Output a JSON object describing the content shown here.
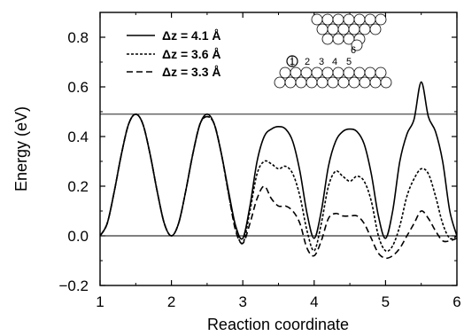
{
  "chart_data": {
    "type": "line",
    "title": "",
    "xlabel": "Reaction coordinate",
    "ylabel": "Energy  (eV)",
    "xlim": [
      1,
      6
    ],
    "ylim": [
      -0.2,
      0.9
    ],
    "x_ticks": [
      "1",
      "2",
      "3",
      "4",
      "5",
      "6"
    ],
    "y_ticks": [
      "−0.2",
      "0.0",
      "0.2",
      "0.4",
      "0.6",
      "0.8"
    ],
    "y_tick_values": [
      -0.2,
      0.0,
      0.2,
      0.4,
      0.6,
      0.8
    ],
    "reference_lines": [
      0.0,
      0.49
    ],
    "grid": false,
    "legend_position": "top-left",
    "series": [
      {
        "name": "Δz = 4.1 Å",
        "style": "solid",
        "x": [
          1.0,
          1.1,
          1.2,
          1.3,
          1.4,
          1.5,
          1.6,
          1.7,
          1.8,
          1.9,
          2.0,
          2.1,
          2.2,
          2.3,
          2.4,
          2.5,
          2.6,
          2.7,
          2.8,
          2.9,
          3.0,
          3.1,
          3.2,
          3.3,
          3.4,
          3.5,
          3.6,
          3.7,
          3.8,
          3.9,
          4.0,
          4.1,
          4.2,
          4.3,
          4.4,
          4.5,
          4.6,
          4.7,
          4.8,
          4.9,
          5.0,
          5.1,
          5.2,
          5.3,
          5.4,
          5.5,
          5.6,
          5.7,
          5.8,
          5.9,
          6.0
        ],
        "y": [
          0.0,
          0.05,
          0.18,
          0.33,
          0.45,
          0.49,
          0.45,
          0.33,
          0.18,
          0.05,
          0.0,
          0.05,
          0.18,
          0.33,
          0.45,
          0.49,
          0.45,
          0.33,
          0.18,
          0.04,
          -0.01,
          0.12,
          0.3,
          0.4,
          0.43,
          0.44,
          0.43,
          0.38,
          0.26,
          0.09,
          -0.01,
          0.1,
          0.28,
          0.38,
          0.42,
          0.43,
          0.42,
          0.37,
          0.25,
          0.08,
          -0.01,
          0.1,
          0.3,
          0.41,
          0.47,
          0.62,
          0.48,
          0.42,
          0.3,
          0.1,
          0.0
        ]
      },
      {
        "name": "Δz = 3.6 Å",
        "style": "dotted",
        "x": [
          1.0,
          1.1,
          1.2,
          1.3,
          1.4,
          1.5,
          1.6,
          1.7,
          1.8,
          1.9,
          2.0,
          2.1,
          2.2,
          2.3,
          2.4,
          2.5,
          2.6,
          2.7,
          2.8,
          2.9,
          3.0,
          3.1,
          3.2,
          3.3,
          3.4,
          3.5,
          3.6,
          3.7,
          3.8,
          3.9,
          4.0,
          4.1,
          4.2,
          4.3,
          4.4,
          4.5,
          4.6,
          4.7,
          4.8,
          4.9,
          5.0,
          5.1,
          5.2,
          5.3,
          5.4,
          5.5,
          5.6,
          5.7,
          5.8,
          5.9,
          6.0
        ],
        "y": [
          0.0,
          0.05,
          0.18,
          0.33,
          0.45,
          0.49,
          0.45,
          0.33,
          0.18,
          0.05,
          0.0,
          0.05,
          0.18,
          0.33,
          0.45,
          0.48,
          0.45,
          0.33,
          0.17,
          0.03,
          -0.03,
          0.1,
          0.25,
          0.3,
          0.29,
          0.27,
          0.28,
          0.25,
          0.16,
          0.02,
          -0.06,
          0.05,
          0.2,
          0.26,
          0.24,
          0.22,
          0.24,
          0.22,
          0.14,
          0.0,
          -0.06,
          -0.04,
          0.04,
          0.16,
          0.23,
          0.27,
          0.25,
          0.16,
          0.05,
          -0.01,
          0.0
        ]
      },
      {
        "name": "Δz = 3.3 Å",
        "style": "dashed",
        "x": [
          1.0,
          1.1,
          1.2,
          1.3,
          1.4,
          1.5,
          1.6,
          1.7,
          1.8,
          1.9,
          2.0,
          2.1,
          2.2,
          2.3,
          2.4,
          2.5,
          2.6,
          2.7,
          2.8,
          2.9,
          3.0,
          3.1,
          3.2,
          3.3,
          3.4,
          3.5,
          3.6,
          3.7,
          3.8,
          3.9,
          4.0,
          4.1,
          4.2,
          4.3,
          4.4,
          4.5,
          4.6,
          4.7,
          4.8,
          4.9,
          5.0,
          5.1,
          5.2,
          5.3,
          5.4,
          5.5,
          5.6,
          5.7,
          5.8,
          5.9,
          6.0
        ],
        "y": [
          0.0,
          0.05,
          0.18,
          0.33,
          0.45,
          0.49,
          0.45,
          0.33,
          0.18,
          0.05,
          0.0,
          0.05,
          0.18,
          0.33,
          0.45,
          0.48,
          0.45,
          0.33,
          0.17,
          0.02,
          -0.03,
          0.05,
          0.15,
          0.2,
          0.15,
          0.12,
          0.12,
          0.1,
          0.05,
          -0.05,
          -0.08,
          -0.02,
          0.07,
          0.09,
          0.08,
          0.08,
          0.08,
          0.05,
          -0.01,
          -0.07,
          -0.09,
          -0.08,
          -0.05,
          0.0,
          0.05,
          0.1,
          0.07,
          0.02,
          -0.02,
          -0.02,
          -0.01
        ]
      }
    ]
  },
  "inset": {
    "labels": [
      "1",
      "2",
      "3",
      "4",
      "5",
      "6"
    ]
  }
}
